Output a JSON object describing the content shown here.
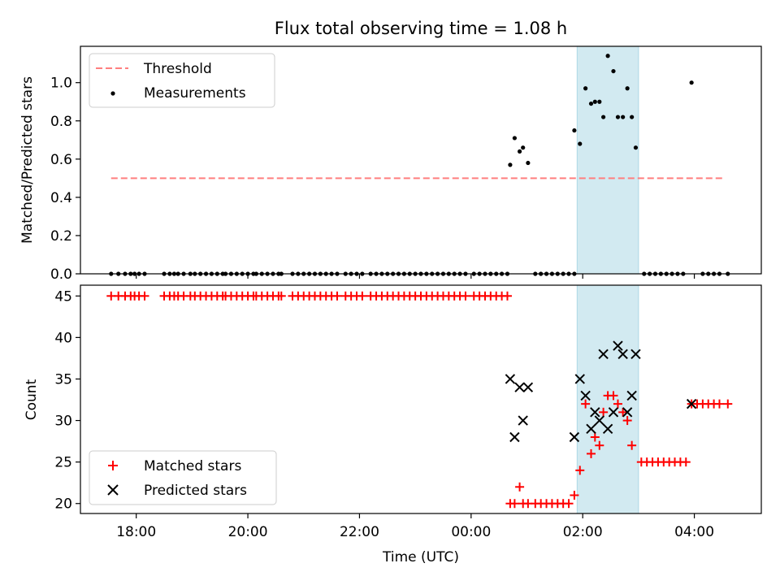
{
  "chart_data": {
    "type": "scatter",
    "title": "Flux total observing time = 1.08 h",
    "xlabel": "Time (UTC)",
    "x_ticks": [
      "18:00",
      "20:00",
      "22:00",
      "00:00",
      "02:00",
      "04:00"
    ],
    "x_tick_hours": [
      18,
      20,
      22,
      24,
      26,
      28
    ],
    "xlim_hours": [
      17.0,
      29.2
    ],
    "highlight_span_hours": [
      25.9,
      27.0
    ],
    "colors": {
      "highlight": "#add8e6",
      "threshold": "#ff7f7f",
      "matched": "#ff0000",
      "predicted": "#000000",
      "measurement": "#000000"
    },
    "top_panel": {
      "ylabel": "Matched/Predicted stars",
      "ylim": [
        0,
        1.19
      ],
      "yticks": [
        "0.0",
        "0.2",
        "0.4",
        "0.6",
        "0.8",
        "1.0"
      ],
      "ytick_values": [
        0,
        0.2,
        0.4,
        0.6,
        0.8,
        1.0
      ],
      "legend_placement": "top-left",
      "legend": [
        "Threshold",
        "Measurements"
      ],
      "threshold": {
        "name": "Threshold",
        "y": 0.5,
        "x_range_hours": [
          17.55,
          28.55
        ]
      },
      "measurements_zero_hours": [
        17.55,
        17.68,
        17.8,
        17.9,
        17.97,
        18.05,
        18.15,
        18.5,
        18.6,
        18.68,
        18.75,
        18.85,
        18.97,
        19.05,
        19.15,
        19.25,
        19.35,
        19.45,
        19.55,
        19.6,
        19.7,
        19.8,
        19.9,
        20.0,
        20.1,
        20.15,
        20.25,
        20.35,
        20.45,
        20.55,
        20.6,
        20.8,
        20.9,
        21.0,
        21.1,
        21.2,
        21.3,
        21.4,
        21.5,
        21.6,
        21.75,
        21.85,
        21.95,
        22.05,
        22.2,
        22.3,
        22.4,
        22.5,
        22.6,
        22.7,
        22.8,
        22.9,
        23.0,
        23.1,
        23.2,
        23.3,
        23.4,
        23.5,
        23.6,
        23.7,
        23.8,
        23.9,
        24.05,
        24.15,
        24.25,
        24.35,
        24.45,
        24.55,
        24.65,
        25.15,
        25.25,
        25.35,
        25.45,
        25.55,
        25.65,
        25.75,
        25.85,
        27.1,
        27.2,
        27.3,
        27.4,
        27.5,
        27.6,
        27.7,
        27.8,
        28.15,
        28.25,
        28.35,
        28.45,
        28.6
      ],
      "measurements": [
        [
          24.7,
          0.57
        ],
        [
          24.78,
          0.71
        ],
        [
          24.87,
          0.64
        ],
        [
          24.93,
          0.66
        ],
        [
          25.02,
          0.58
        ],
        [
          25.85,
          0.75
        ],
        [
          25.95,
          0.68
        ],
        [
          26.05,
          0.97
        ],
        [
          26.15,
          0.89
        ],
        [
          26.22,
          0.9
        ],
        [
          26.3,
          0.9
        ],
        [
          26.37,
          0.82
        ],
        [
          26.45,
          1.14
        ],
        [
          26.55,
          1.06
        ],
        [
          26.63,
          0.82
        ],
        [
          26.72,
          0.82
        ],
        [
          26.8,
          0.97
        ],
        [
          26.88,
          0.82
        ],
        [
          26.95,
          0.66
        ],
        [
          27.95,
          1.0
        ]
      ]
    },
    "bottom_panel": {
      "ylabel": "Count",
      "ylim": [
        18.8,
        46.3
      ],
      "yticks": [
        "20",
        "25",
        "30",
        "35",
        "40",
        "45"
      ],
      "ytick_values": [
        20,
        25,
        30,
        35,
        40,
        45
      ],
      "legend_placement": "bottom-left",
      "legend": [
        "Matched stars",
        "Predicted stars"
      ],
      "series": [
        {
          "name": "Matched stars",
          "marker": "plus",
          "constant_runs": [
            {
              "y": 45,
              "x_hours": [
                17.55,
                17.68,
                17.8,
                17.9,
                17.97,
                18.05,
                18.15,
                18.5,
                18.6,
                18.68,
                18.75,
                18.85,
                18.97,
                19.05,
                19.15,
                19.25,
                19.35,
                19.45,
                19.55,
                19.6,
                19.7,
                19.8,
                19.9,
                20.0,
                20.1,
                20.15,
                20.25,
                20.35,
                20.45,
                20.55,
                20.6,
                20.8,
                20.9,
                21.0,
                21.1,
                21.2,
                21.3,
                21.4,
                21.5,
                21.6,
                21.75,
                21.85,
                21.95,
                22.05,
                22.2,
                22.3,
                22.4,
                22.5,
                22.6,
                22.7,
                22.8,
                22.9,
                23.0,
                23.1,
                23.2,
                23.3,
                23.4,
                23.5,
                23.6,
                23.7,
                23.8,
                23.9,
                24.05,
                24.15,
                24.25,
                24.35,
                24.45,
                24.55,
                24.65
              ]
            },
            {
              "y": 20,
              "x_hours": [
                24.7,
                24.78,
                24.93,
                25.02,
                25.15,
                25.25,
                25.35,
                25.45,
                25.55,
                25.65,
                25.75
              ]
            },
            {
              "y": 25,
              "x_hours": [
                27.05,
                27.15,
                27.25,
                27.35,
                27.45,
                27.55,
                27.65,
                27.75,
                27.85
              ]
            },
            {
              "y": 32,
              "x_hours": [
                27.95,
                28.05,
                28.15,
                28.25,
                28.35,
                28.45,
                28.6
              ]
            }
          ],
          "points": [
            [
              24.87,
              22
            ],
            [
              25.85,
              21
            ],
            [
              25.95,
              24
            ],
            [
              26.05,
              32
            ],
            [
              26.15,
              26
            ],
            [
              26.22,
              28
            ],
            [
              26.3,
              27
            ],
            [
              26.37,
              31
            ],
            [
              26.45,
              33
            ],
            [
              26.55,
              33
            ],
            [
              26.63,
              32
            ],
            [
              26.72,
              31
            ],
            [
              26.8,
              30
            ],
            [
              26.88,
              27
            ]
          ]
        },
        {
          "name": "Predicted stars",
          "marker": "x",
          "points": [
            [
              24.7,
              35
            ],
            [
              24.78,
              28
            ],
            [
              24.87,
              34
            ],
            [
              24.93,
              30
            ],
            [
              25.02,
              34
            ],
            [
              25.85,
              28
            ],
            [
              25.95,
              35
            ],
            [
              26.05,
              33
            ],
            [
              26.15,
              29
            ],
            [
              26.22,
              31
            ],
            [
              26.3,
              30
            ],
            [
              26.37,
              38
            ],
            [
              26.45,
              29
            ],
            [
              26.55,
              31
            ],
            [
              26.63,
              39
            ],
            [
              26.72,
              38
            ],
            [
              26.8,
              31
            ],
            [
              26.88,
              33
            ],
            [
              26.95,
              38
            ],
            [
              27.95,
              32
            ]
          ]
        }
      ]
    }
  }
}
